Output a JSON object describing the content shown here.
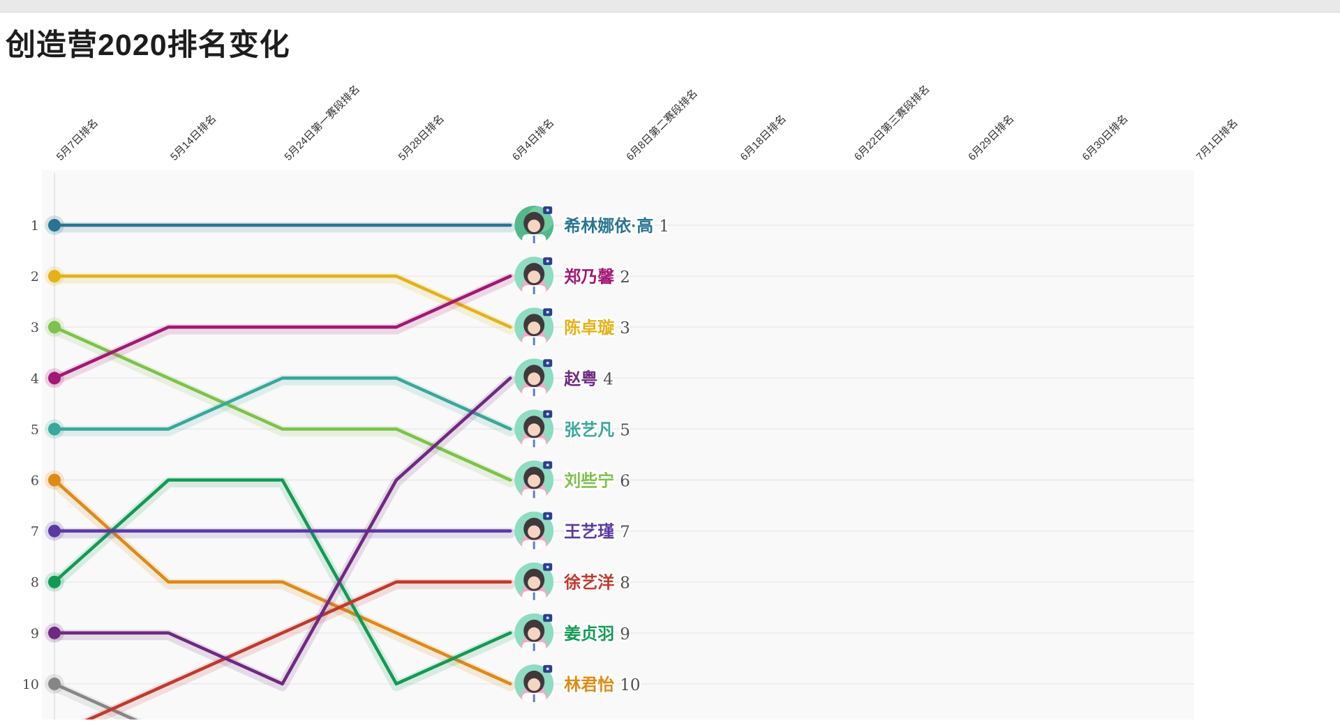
{
  "page": {
    "title": "创造营2020排名变化"
  },
  "chart_data": {
    "type": "line",
    "variant": "bump-ranking-race",
    "title": "创造营2020排名变化",
    "x_categories": [
      "5月7日排名",
      "5月14日排名",
      "5月24日第一赛段排名",
      "5月28日排名",
      "6月4日排名",
      "6月8日第二赛段排名",
      "6月18日排名",
      "6月22日第三赛段排名",
      "6月29日排名",
      "6月30日排名",
      "7月1日排名"
    ],
    "shown_through_category": "6月4日排名",
    "shown_through_index": 4,
    "y_axis": {
      "inverted": true,
      "ticks": [
        1,
        2,
        3,
        4,
        5,
        6,
        7,
        8,
        9,
        10
      ]
    },
    "grid": "horizontal-only",
    "legend_position": "line-end-labels",
    "series": [
      {
        "name": "希林娜依·高",
        "color": "#2a7491",
        "current_rank": "1",
        "ranks": [
          1,
          1,
          1,
          1,
          1
        ],
        "avatar_style": "green"
      },
      {
        "name": "郑乃馨",
        "color": "#a21873",
        "current_rank": "2",
        "ranks": [
          4,
          3,
          3,
          3,
          2
        ],
        "avatar_style": "pink"
      },
      {
        "name": "陈卓璇",
        "color": "#e5b117",
        "current_rank": "3",
        "ranks": [
          2,
          2,
          2,
          2,
          3
        ],
        "avatar_style": "pink"
      },
      {
        "name": "赵粤",
        "color": "#6e2a80",
        "current_rank": "4",
        "ranks": [
          9,
          9,
          10,
          6,
          4
        ],
        "avatar_style": "pink"
      },
      {
        "name": "张艺凡",
        "color": "#3aa79b",
        "current_rank": "5",
        "ranks": [
          5,
          5,
          4,
          4,
          5
        ],
        "avatar_style": "pink"
      },
      {
        "name": "刘些宁",
        "color": "#7dc24b",
        "current_rank": "6",
        "ranks": [
          3,
          4,
          5,
          5,
          6
        ],
        "avatar_style": "pink"
      },
      {
        "name": "王艺瑾",
        "color": "#5a3aa0",
        "current_rank": "7",
        "ranks": [
          7,
          7,
          7,
          7,
          7
        ],
        "avatar_style": "pink"
      },
      {
        "name": "徐艺洋",
        "color": "#c03a2e",
        "current_rank": "8",
        "ranks": [
          11,
          10,
          9,
          8,
          8
        ],
        "avatar_style": "pink"
      },
      {
        "name": "姜贞羽",
        "color": "#129a55",
        "current_rank": "9",
        "ranks": [
          8,
          6,
          6,
          10,
          9
        ],
        "avatar_style": "pink"
      },
      {
        "name": "林君怡",
        "color": "#de8a15",
        "current_rank": "10",
        "ranks": [
          6,
          8,
          8,
          9,
          10
        ],
        "avatar_style": "pink"
      },
      {
        "name": "",
        "color": "#868686",
        "current_rank": null,
        "ranks": [
          10,
          11
        ],
        "avatar_style": null
      }
    ],
    "style": {
      "gridline_color": "#e7e7e7",
      "axis_line_color": "#d9d9d9",
      "plot_bg": "#f9f9f9",
      "rank_number_color": "#4f4f4f",
      "badge_color": "#2c3e8f",
      "avatar_mint": "#8edcc2",
      "avatar_pink": "#f5a8c5"
    }
  }
}
